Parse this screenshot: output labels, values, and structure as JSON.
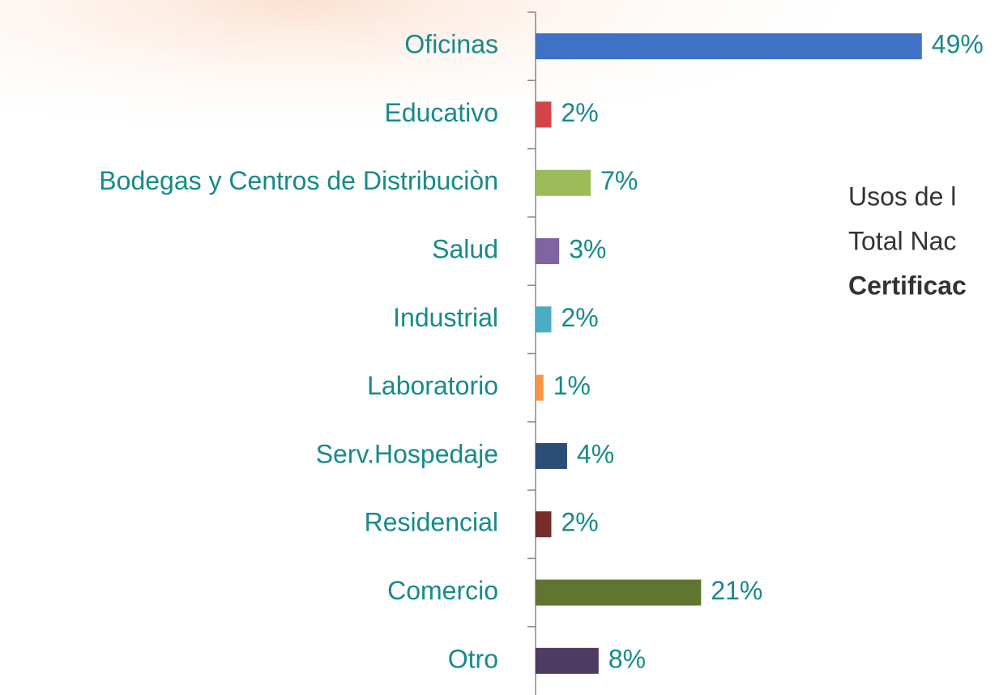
{
  "chart_data": {
    "type": "bar",
    "orientation": "horizontal",
    "categories": [
      "Oficinas",
      "Educativo",
      "Bodegas y Centros de Distribuciòn",
      "Salud",
      "Industrial",
      "Laboratorio",
      "Serv.Hospedaje",
      "Residencial",
      "Comercio",
      "Otro"
    ],
    "values": [
      49,
      2,
      7,
      3,
      2,
      1,
      4,
      2,
      21,
      8
    ],
    "value_labels": [
      "49%",
      "2%",
      "7%",
      "3%",
      "2%",
      "1%",
      "4%",
      "2%",
      "21%",
      "8%"
    ],
    "colors": [
      "#3f72c4",
      "#d04646",
      "#9bbb59",
      "#8064a2",
      "#4bacc6",
      "#f79646",
      "#2c4d75",
      "#772c2a",
      "#5f7530",
      "#4d3b62"
    ],
    "annotations": [
      "Usos de l",
      "Total Nac",
      "Certificac"
    ]
  }
}
